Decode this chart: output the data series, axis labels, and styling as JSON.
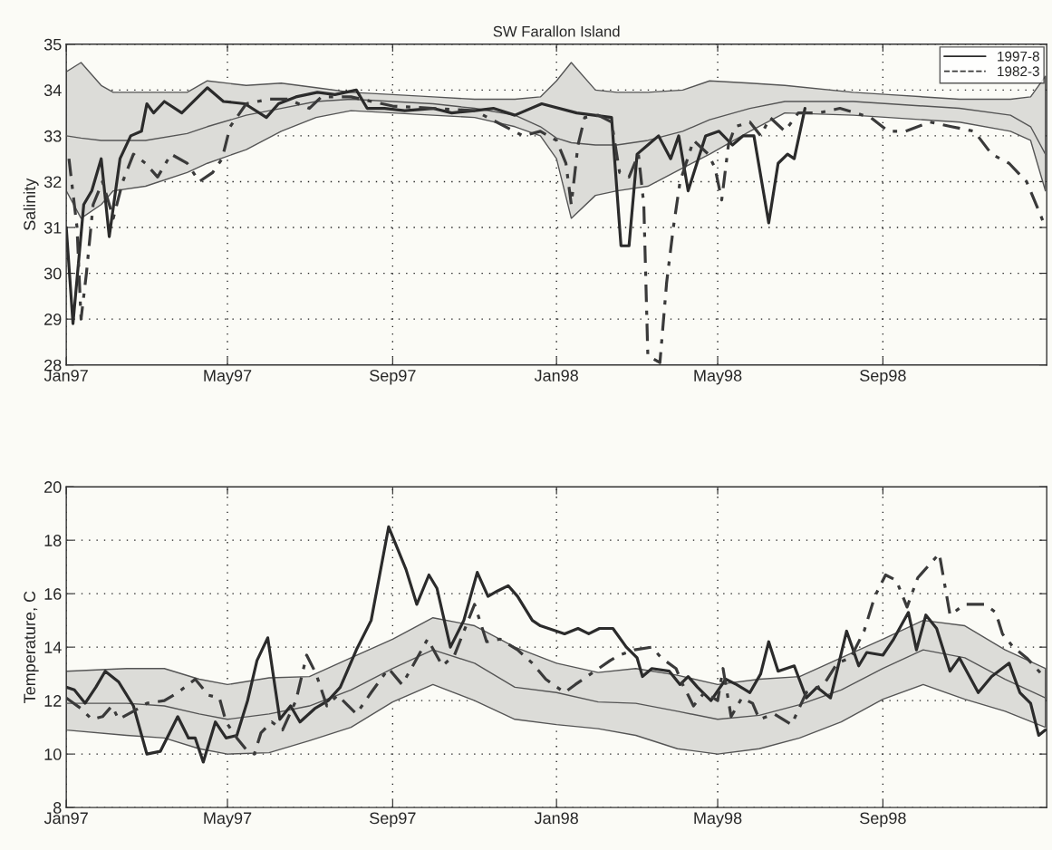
{
  "chart_data": [
    {
      "type": "line",
      "title": "SW Farallon Island",
      "ylabel": "Salinity",
      "xlim": [
        "1997-01-01",
        "1999-01-01"
      ],
      "xticks": [
        {
          "value": "1997-01-01",
          "label": "Jan97"
        },
        {
          "value": "1997-05-01",
          "label": "May97"
        },
        {
          "value": "1997-09-01",
          "label": "Sep97"
        },
        {
          "value": "1998-01-01",
          "label": "Jan98"
        },
        {
          "value": "1998-05-01",
          "label": "May98"
        },
        {
          "value": "1998-09-01",
          "label": "Sep98"
        }
      ],
      "ylim": [
        28,
        35
      ],
      "yticks": [
        28,
        29,
        30,
        31,
        32,
        33,
        34,
        35
      ],
      "grid": true,
      "legend": "top right",
      "series": [
        {
          "color": "#555555",
          "line_style": "solid",
          "x": [
            "1997-01-01",
            "1997-01-12",
            "1997-01-27",
            "1997-02-05",
            "1997-03-01",
            "1997-04-01",
            "1997-04-16",
            "1997-05-15",
            "1997-06-10",
            "1997-07-06",
            "1997-08-01",
            "1997-09-01",
            "1997-10-01",
            "1997-11-01",
            "1997-12-01",
            "1997-12-20",
            "1998-01-01",
            "1998-01-12",
            "1998-01-30",
            "1998-02-15",
            "1998-03-10",
            "1998-04-05",
            "1998-04-25",
            "1998-05-25",
            "1998-06-20",
            "1998-08-10",
            "1998-09-05",
            "1998-10-28",
            "1998-12-05",
            "1998-12-20",
            "1998-12-31"
          ],
          "values": [
            33.0,
            32.95,
            32.9,
            32.9,
            32.9,
            33.05,
            33.2,
            33.45,
            33.6,
            33.75,
            33.8,
            33.75,
            33.7,
            33.6,
            33.45,
            33.2,
            32.95,
            32.85,
            32.8,
            32.8,
            32.9,
            33.1,
            33.35,
            33.6,
            33.75,
            33.75,
            33.7,
            33.6,
            33.45,
            33.2,
            32.6
          ],
          "upper": [
            34.4,
            34.6,
            34.1,
            33.95,
            33.95,
            33.95,
            34.2,
            34.1,
            34.15,
            34.05,
            33.95,
            33.9,
            33.85,
            33.8,
            33.8,
            33.85,
            34.2,
            34.6,
            34.0,
            33.95,
            33.95,
            34.0,
            34.2,
            34.15,
            34.1,
            33.95,
            33.9,
            33.8,
            33.8,
            33.85,
            34.3
          ],
          "lower": [
            31.8,
            31.2,
            31.5,
            31.8,
            31.9,
            32.2,
            32.4,
            32.7,
            33.1,
            33.4,
            33.55,
            33.5,
            33.45,
            33.4,
            33.2,
            33.0,
            32.5,
            31.2,
            31.7,
            31.8,
            31.9,
            32.3,
            32.6,
            33.1,
            33.5,
            33.45,
            33.4,
            33.3,
            33.1,
            32.9,
            31.8
          ]
        },
        {
          "name": "1997-8",
          "color": "#2b2b2b",
          "line_style": "solid",
          "x": [
            "1997-01-01",
            "1997-01-06",
            "1997-01-14",
            "1997-01-20",
            "1997-01-27",
            "1997-02-02",
            "1997-02-10",
            "1997-02-18",
            "1997-02-26",
            "1997-03-02",
            "1997-03-07",
            "1997-03-15",
            "1997-03-28",
            "1997-04-16",
            "1997-04-28",
            "1997-05-14",
            "1997-05-30",
            "1997-06-08",
            "1997-06-21",
            "1997-07-07",
            "1997-07-20",
            "1997-08-05",
            "1997-08-13",
            "1997-08-26",
            "1997-09-10",
            "1997-10-01",
            "1997-10-15",
            "1997-11-01",
            "1997-11-15",
            "1997-12-01",
            "1997-12-21",
            "1998-01-16",
            "1998-02-11",
            "1998-02-18",
            "1998-02-24",
            "1998-03-02",
            "1998-03-10",
            "1998-03-18",
            "1998-03-27",
            "1998-04-02",
            "1998-04-09",
            "1998-04-22",
            "1998-05-02",
            "1998-05-12",
            "1998-05-20",
            "1998-05-28",
            "1998-06-08",
            "1998-06-15",
            "1998-06-22",
            "1998-06-27",
            "1998-07-05"
          ],
          "values": [
            31.0,
            28.9,
            31.5,
            31.8,
            32.5,
            30.8,
            32.5,
            33.0,
            33.1,
            33.7,
            33.5,
            33.75,
            33.5,
            34.05,
            33.75,
            33.7,
            33.4,
            33.7,
            33.85,
            33.95,
            33.9,
            34.0,
            33.6,
            33.6,
            33.55,
            33.6,
            33.5,
            33.55,
            33.6,
            33.45,
            33.7,
            33.5,
            33.4,
            30.6,
            30.6,
            32.6,
            32.8,
            33.0,
            32.5,
            33.0,
            31.8,
            33.0,
            33.1,
            32.8,
            33.0,
            33.0,
            31.1,
            32.4,
            32.6,
            32.5,
            33.6
          ]
        },
        {
          "name": "1982-3",
          "color": "#3a3a3a",
          "line_style": "dashed",
          "x": [
            "1997-01-03",
            "1997-01-09",
            "1997-01-12",
            "1997-01-16",
            "1997-01-21",
            "1997-01-28",
            "1997-02-05",
            "1997-02-12",
            "1997-02-20",
            "1997-03-01",
            "1997-03-10",
            "1997-03-20",
            "1997-04-01",
            "1997-04-10",
            "1997-04-20",
            "1997-04-27",
            "1997-05-03",
            "1997-05-15",
            "1997-06-01",
            "1997-06-15",
            "1997-07-01",
            "1997-07-10",
            "1997-08-01",
            "1997-09-01",
            "1997-10-01",
            "1997-11-01",
            "1997-12-07",
            "1997-12-20",
            "1998-01-01",
            "1998-01-08",
            "1998-01-12",
            "1998-01-17",
            "1998-01-22",
            "1998-02-01",
            "1998-02-11",
            "1998-02-17",
            "1998-02-24",
            "1998-03-03",
            "1998-03-07",
            "1998-03-10",
            "1998-03-19",
            "1998-03-24",
            "1998-03-29",
            "1998-04-03",
            "1998-04-13",
            "1998-04-24",
            "1998-04-29",
            "1998-05-04",
            "1998-05-09",
            "1998-05-14",
            "1998-05-25",
            "1998-06-02",
            "1998-06-09",
            "1998-06-20",
            "1998-06-30",
            "1998-07-15",
            "1998-07-31",
            "1998-08-23",
            "1998-09-05",
            "1998-09-18",
            "1998-10-06",
            "1998-10-22",
            "1998-11-08",
            "1998-11-21",
            "1998-12-04",
            "1998-12-17",
            "1998-12-27",
            "1998-12-31"
          ],
          "values": [
            32.5,
            31.0,
            29.0,
            30.0,
            31.5,
            32.0,
            31.2,
            32.0,
            32.6,
            32.4,
            32.1,
            32.6,
            32.4,
            32.0,
            32.2,
            32.5,
            33.2,
            33.7,
            33.8,
            33.8,
            33.6,
            33.85,
            33.85,
            33.65,
            33.6,
            33.55,
            33.0,
            33.1,
            32.9,
            32.4,
            31.5,
            32.8,
            33.4,
            33.45,
            33.3,
            32.2,
            32.1,
            32.6,
            31.5,
            28.2,
            28.05,
            29.8,
            31.0,
            32.0,
            32.9,
            32.6,
            32.3,
            31.6,
            32.8,
            33.2,
            33.3,
            33.0,
            33.4,
            33.1,
            33.5,
            33.5,
            33.6,
            33.4,
            33.1,
            33.1,
            33.3,
            33.2,
            33.1,
            32.6,
            32.4,
            32.0,
            31.3,
            31.0
          ]
        }
      ]
    },
    {
      "type": "line",
      "ylabel": "Temperature, C",
      "xlim": [
        "1997-01-01",
        "1999-01-01"
      ],
      "xticks": [
        {
          "value": "1997-01-01",
          "label": "Jan97"
        },
        {
          "value": "1997-05-01",
          "label": "May97"
        },
        {
          "value": "1997-09-01",
          "label": "Sep97"
        },
        {
          "value": "1998-01-01",
          "label": "Jan98"
        },
        {
          "value": "1998-05-01",
          "label": "May98"
        },
        {
          "value": "1998-09-01",
          "label": "Sep98"
        }
      ],
      "ylim": [
        8,
        20
      ],
      "yticks": [
        8,
        10,
        12,
        14,
        16,
        18,
        20
      ],
      "grid": true,
      "series": [
        {
          "color": "#555555",
          "line_style": "solid",
          "x": [
            "1997-01-01",
            "1997-02-15",
            "1997-03-15",
            "1997-04-10",
            "1997-05-01",
            "1997-06-01",
            "1997-07-01",
            "1997-08-01",
            "1997-09-01",
            "1997-10-01",
            "1997-11-01",
            "1997-12-01",
            "1998-01-01",
            "1998-02-01",
            "1998-03-01",
            "1998-04-01",
            "1998-05-01",
            "1998-06-01",
            "1998-07-01",
            "1998-08-01",
            "1998-09-01",
            "1998-10-01",
            "1998-11-01",
            "1998-12-01",
            "1998-12-31"
          ],
          "values": [
            11.9,
            11.9,
            11.8,
            11.5,
            11.3,
            11.5,
            11.8,
            12.4,
            13.2,
            13.9,
            13.4,
            12.5,
            12.3,
            11.95,
            11.9,
            11.6,
            11.3,
            11.45,
            11.85,
            12.4,
            13.2,
            13.9,
            13.6,
            12.8,
            12.1
          ],
          "upper": [
            13.1,
            13.2,
            13.2,
            12.8,
            12.6,
            12.85,
            12.9,
            13.6,
            14.3,
            15.1,
            14.8,
            14.0,
            13.4,
            13.05,
            13.2,
            12.95,
            12.6,
            12.8,
            12.9,
            13.6,
            14.3,
            15.0,
            14.8,
            13.9,
            13.2
          ],
          "lower": [
            10.9,
            10.7,
            10.6,
            10.2,
            10.0,
            10.05,
            10.5,
            11.0,
            11.95,
            12.6,
            12.0,
            11.3,
            11.1,
            10.95,
            10.7,
            10.2,
            10.0,
            10.2,
            10.6,
            11.2,
            12.05,
            12.6,
            12.05,
            11.6,
            11.0
          ]
        },
        {
          "color": "#2b2b2b",
          "line_style": "solid",
          "x": [
            "1997-01-01",
            "1997-01-07",
            "1997-01-15",
            "1997-01-23",
            "1997-01-30",
            "1997-02-09",
            "1997-02-20",
            "1997-03-02",
            "1997-03-12",
            "1997-03-25",
            "1997-04-02",
            "1997-04-07",
            "1997-04-13",
            "1997-04-22",
            "1997-04-30",
            "1997-05-08",
            "1997-05-16",
            "1997-05-23",
            "1997-05-31",
            "1997-06-09",
            "1997-06-17",
            "1997-06-24",
            "1997-07-05",
            "1997-07-15",
            "1997-07-24",
            "1997-08-05",
            "1997-08-16",
            "1997-08-29",
            "1997-09-11",
            "1997-09-19",
            "1997-09-28",
            "1997-10-04",
            "1997-10-14",
            "1997-10-24",
            "1997-11-03",
            "1997-11-11",
            "1997-11-18",
            "1997-11-26",
            "1997-12-03",
            "1997-12-14",
            "1997-12-20",
            "1998-01-07",
            "1998-01-17",
            "1998-01-25",
            "1998-02-02",
            "1998-02-12",
            "1998-02-22",
            "1998-03-02",
            "1998-03-06",
            "1998-03-13",
            "1998-03-26",
            "1998-04-03",
            "1998-04-09",
            "1998-04-16",
            "1998-04-26",
            "1998-05-07",
            "1998-05-15",
            "1998-05-25",
            "1998-06-02",
            "1998-06-08",
            "1998-06-15",
            "1998-06-27",
            "1998-07-06",
            "1998-07-14",
            "1998-07-24",
            "1998-08-05",
            "1998-08-14",
            "1998-08-20",
            "1998-09-01",
            "1998-09-09",
            "1998-09-20",
            "1998-09-26",
            "1998-10-03",
            "1998-10-11",
            "1998-10-21",
            "1998-10-28",
            "1998-11-11",
            "1998-11-21",
            "1998-12-04",
            "1998-12-12",
            "1998-12-20",
            "1998-12-26",
            "1998-12-31"
          ],
          "values": [
            12.5,
            12.4,
            11.9,
            12.5,
            13.1,
            12.7,
            11.8,
            10.0,
            10.1,
            11.4,
            10.6,
            10.6,
            9.7,
            11.2,
            10.6,
            10.7,
            12.0,
            13.5,
            14.35,
            11.3,
            11.8,
            11.2,
            11.7,
            12.0,
            12.5,
            13.9,
            15.0,
            18.5,
            16.9,
            15.6,
            16.7,
            16.2,
            14.0,
            15.0,
            16.8,
            15.9,
            16.1,
            16.3,
            15.9,
            15.0,
            14.8,
            14.5,
            14.7,
            14.5,
            14.7,
            14.7,
            14.0,
            13.6,
            12.9,
            13.2,
            13.1,
            12.6,
            12.9,
            12.5,
            12.0,
            12.8,
            12.6,
            12.3,
            13.0,
            14.2,
            13.1,
            13.3,
            12.1,
            12.5,
            12.1,
            14.6,
            13.3,
            13.8,
            13.7,
            14.3,
            15.3,
            13.9,
            15.2,
            14.7,
            13.1,
            13.6,
            12.3,
            12.9,
            13.4,
            12.3,
            11.9,
            10.7,
            10.9
          ]
        },
        {
          "color": "#3a3a3a",
          "line_style": "dashed",
          "x": [
            "1997-01-01",
            "1997-01-12",
            "1997-01-20",
            "1997-01-28",
            "1997-02-04",
            "1997-02-09",
            "1997-02-20",
            "1997-03-02",
            "1997-03-15",
            "1997-03-25",
            "1997-04-07",
            "1997-04-17",
            "1997-04-25",
            "1997-04-30",
            "1997-05-08",
            "1997-05-16",
            "1997-05-21",
            "1997-05-26",
            "1997-06-03",
            "1997-06-11",
            "1997-06-21",
            "1997-06-29",
            "1997-07-06",
            "1997-07-14",
            "1997-07-22",
            "1997-08-05",
            "1997-08-16",
            "1997-08-29",
            "1997-09-08",
            "1997-09-16",
            "1997-09-27",
            "1997-10-08",
            "1997-10-17",
            "1997-11-01",
            "1997-11-10",
            "1997-11-20",
            "1997-12-03",
            "1997-12-14",
            "1997-12-24",
            "1998-01-07",
            "1998-01-15",
            "1998-02-10",
            "1998-02-17",
            "1998-02-28",
            "1998-03-13",
            "1998-03-20",
            "1998-03-31",
            "1998-04-05",
            "1998-04-13",
            "1998-04-21",
            "1998-05-01",
            "1998-05-05",
            "1998-05-11",
            "1998-05-19",
            "1998-05-27",
            "1998-06-01",
            "1998-06-12",
            "1998-06-25",
            "1998-07-06",
            "1998-07-19",
            "1998-07-29",
            "1998-08-08",
            "1998-08-18",
            "1998-08-26",
            "1998-09-03",
            "1998-09-11",
            "1998-09-19",
            "1998-09-27",
            "1998-10-13",
            "1998-10-21",
            "1998-11-01",
            "1998-11-16",
            "1998-11-24",
            "1998-11-29",
            "1998-12-07",
            "1998-12-17",
            "1998-12-28",
            "1998-12-31"
          ],
          "values": [
            12.1,
            11.7,
            11.3,
            11.4,
            11.8,
            11.3,
            11.6,
            11.9,
            12.0,
            12.3,
            12.8,
            12.2,
            12.1,
            11.2,
            10.6,
            10.1,
            10.0,
            10.8,
            11.2,
            10.9,
            12.0,
            13.7,
            13.0,
            11.8,
            12.2,
            11.5,
            12.3,
            13.2,
            12.6,
            13.3,
            14.3,
            13.3,
            13.7,
            15.6,
            14.2,
            14.3,
            13.9,
            13.4,
            12.8,
            12.3,
            12.6,
            13.5,
            13.7,
            13.9,
            14.0,
            13.6,
            13.2,
            12.6,
            11.8,
            12.3,
            12.0,
            13.2,
            11.4,
            12.1,
            11.9,
            11.3,
            11.5,
            11.1,
            12.3,
            12.6,
            13.4,
            13.6,
            14.6,
            15.9,
            16.7,
            16.5,
            15.5,
            16.6,
            17.5,
            15.2,
            15.6,
            15.6,
            15.3,
            14.5,
            14.0,
            13.6,
            13.0,
            13.0
          ]
        }
      ]
    }
  ]
}
